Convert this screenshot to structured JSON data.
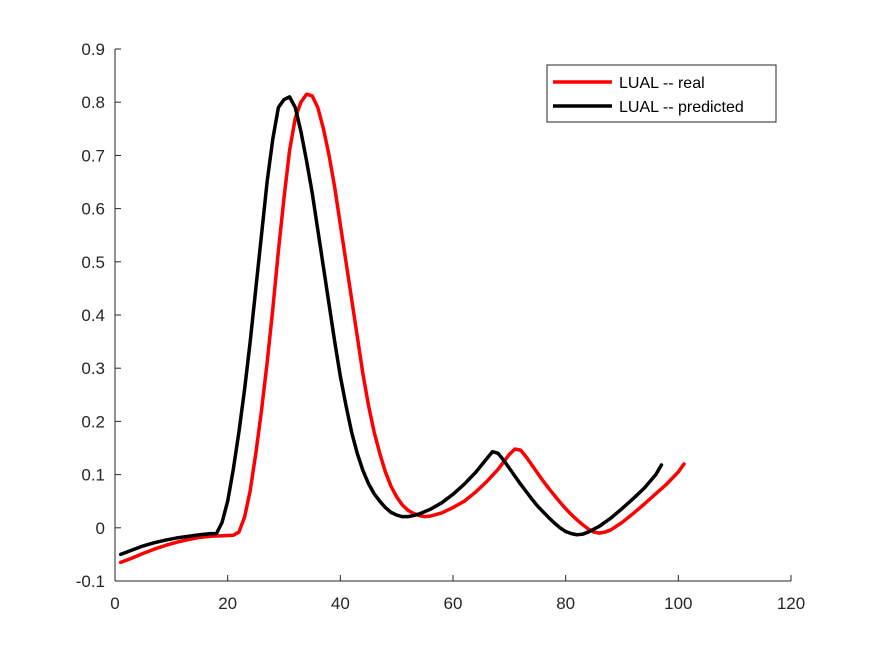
{
  "chart_data": {
    "type": "line",
    "title": "",
    "xlabel": "",
    "ylabel": "",
    "xlim": [
      0,
      120
    ],
    "ylim": [
      -0.1,
      0.9
    ],
    "xticks": [
      0,
      20,
      40,
      60,
      80,
      100,
      120
    ],
    "yticks": [
      -0.1,
      0,
      0.1,
      0.2,
      0.3,
      0.4,
      0.5,
      0.6,
      0.7,
      0.8,
      0.9
    ],
    "xtick_labels": [
      "0",
      "20",
      "40",
      "60",
      "80",
      "100",
      "120"
    ],
    "ytick_labels": [
      "-0.1",
      "0",
      "0.1",
      "0.2",
      "0.3",
      "0.4",
      "0.5",
      "0.6",
      "0.7",
      "0.8",
      "0.9"
    ],
    "grid": false,
    "legend_position": "top-right",
    "series": [
      {
        "name": "LUAL -- real",
        "color": "#ff0000",
        "x": [
          1,
          3,
          5,
          7,
          9,
          11,
          13,
          15,
          17,
          19,
          21,
          22,
          23,
          24,
          25,
          26,
          27,
          28,
          29,
          30,
          31,
          32,
          33,
          34,
          35,
          36,
          37,
          38,
          39,
          40,
          41,
          42,
          43,
          44,
          45,
          46,
          47,
          48,
          49,
          50,
          51,
          52,
          53,
          54,
          55,
          56,
          58,
          60,
          62,
          64,
          66,
          68,
          70,
          71,
          72,
          73,
          74,
          75,
          76,
          77,
          78,
          79,
          80,
          81,
          82,
          83,
          84,
          85,
          86,
          87,
          88,
          90,
          92,
          94,
          96,
          98,
          100,
          101
        ],
        "y": [
          -0.065,
          -0.057,
          -0.048,
          -0.04,
          -0.033,
          -0.027,
          -0.022,
          -0.018,
          -0.016,
          -0.015,
          -0.014,
          -0.008,
          0.02,
          0.07,
          0.14,
          0.22,
          0.31,
          0.41,
          0.52,
          0.62,
          0.71,
          0.77,
          0.8,
          0.815,
          0.812,
          0.79,
          0.75,
          0.7,
          0.64,
          0.57,
          0.5,
          0.43,
          0.36,
          0.29,
          0.23,
          0.18,
          0.14,
          0.105,
          0.078,
          0.058,
          0.043,
          0.033,
          0.027,
          0.023,
          0.021,
          0.022,
          0.028,
          0.038,
          0.05,
          0.067,
          0.087,
          0.11,
          0.138,
          0.148,
          0.146,
          0.133,
          0.118,
          0.103,
          0.088,
          0.074,
          0.061,
          0.048,
          0.036,
          0.025,
          0.015,
          0.006,
          -0.002,
          -0.008,
          -0.01,
          -0.008,
          -0.004,
          0.01,
          0.027,
          0.045,
          0.064,
          0.083,
          0.105,
          0.12
        ]
      },
      {
        "name": "LUAL -- predicted",
        "color": "#000000",
        "x": [
          1,
          3,
          5,
          7,
          9,
          11,
          13,
          15,
          17,
          18,
          19,
          20,
          21,
          22,
          23,
          24,
          25,
          26,
          27,
          28,
          29,
          30,
          31,
          32,
          33,
          34,
          35,
          36,
          37,
          38,
          39,
          40,
          41,
          42,
          43,
          44,
          45,
          46,
          47,
          48,
          49,
          50,
          51,
          52,
          53,
          54,
          56,
          58,
          60,
          62,
          64,
          66,
          67,
          68,
          69,
          70,
          71,
          72,
          73,
          74,
          75,
          76,
          77,
          78,
          79,
          80,
          81,
          82,
          83,
          84,
          86,
          88,
          90,
          92,
          94,
          96,
          97
        ],
        "y": [
          -0.05,
          -0.042,
          -0.034,
          -0.028,
          -0.023,
          -0.019,
          -0.016,
          -0.013,
          -0.011,
          -0.011,
          0.01,
          0.05,
          0.11,
          0.18,
          0.26,
          0.35,
          0.45,
          0.55,
          0.65,
          0.73,
          0.79,
          0.805,
          0.81,
          0.79,
          0.745,
          0.69,
          0.63,
          0.56,
          0.49,
          0.42,
          0.35,
          0.285,
          0.23,
          0.18,
          0.14,
          0.108,
          0.083,
          0.064,
          0.05,
          0.038,
          0.029,
          0.024,
          0.021,
          0.021,
          0.023,
          0.026,
          0.035,
          0.047,
          0.063,
          0.082,
          0.104,
          0.13,
          0.143,
          0.14,
          0.127,
          0.112,
          0.097,
          0.082,
          0.068,
          0.054,
          0.041,
          0.03,
          0.019,
          0.009,
          0.0,
          -0.007,
          -0.011,
          -0.013,
          -0.012,
          -0.008,
          0.003,
          0.018,
          0.036,
          0.055,
          0.075,
          0.1,
          0.118
        ]
      }
    ]
  }
}
